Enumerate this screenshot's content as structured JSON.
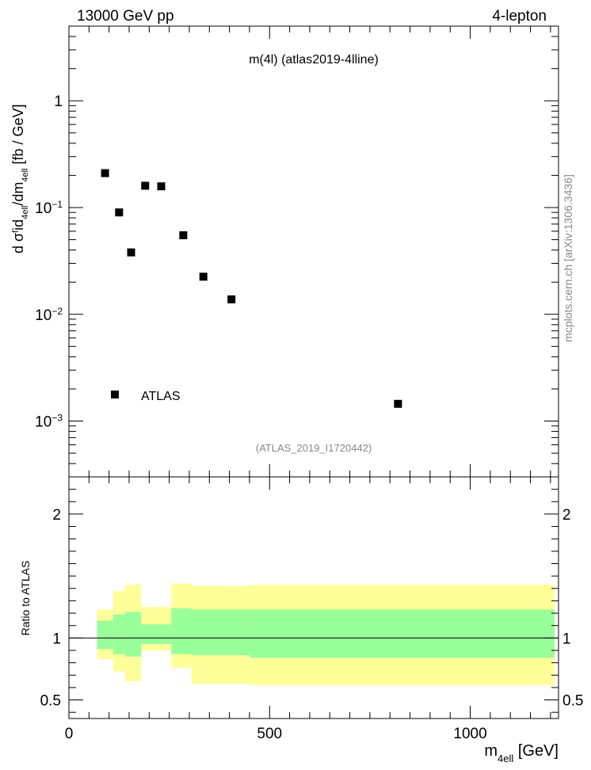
{
  "header": {
    "left": "13000 GeV pp",
    "right": "4-lepton"
  },
  "plot_title": "m(4l) (atlas2019-4lline)",
  "watermark": "(ATLAS_2019_I1720442)",
  "side_label": "mcplots.cern.ch [arXiv:1306.3436]",
  "legend": {
    "label": "ATLAS"
  },
  "colors": {
    "band_outer": "#ffff99",
    "band_inner": "#99ff99",
    "marker": "#000000"
  },
  "chart_data": [
    {
      "type": "scatter",
      "panel": "main",
      "ylog": true,
      "xlim": [
        0,
        1220
      ],
      "ylim": [
        0.0003,
        5
      ],
      "ylabel": "d σ^f id_4ell/dm_4ell [fb / GeV]",
      "yticks": [
        {
          "value": 1,
          "base": "1",
          "exp": ""
        },
        {
          "value": 0.1,
          "base": "10",
          "exp": "−1"
        },
        {
          "value": 0.01,
          "base": "10",
          "exp": "−2"
        },
        {
          "value": 0.001,
          "base": "10",
          "exp": "−3"
        }
      ],
      "series": [
        {
          "name": "ATLAS",
          "x": [
            90,
            125,
            155,
            190,
            230,
            285,
            335,
            405,
            820
          ],
          "y": [
            0.21,
            0.09,
            0.038,
            0.16,
            0.158,
            0.055,
            0.0225,
            0.0138,
            0.00145
          ]
        }
      ]
    },
    {
      "type": "area",
      "panel": "ratio",
      "xlim": [
        0,
        1220
      ],
      "ylim": [
        0.35,
        2.3
      ],
      "xlabel": "m_4ell [GeV]",
      "ylabel": "Ratio to ATLAS",
      "xticks": [
        0,
        500,
        1000
      ],
      "yticks": [
        0.5,
        1,
        2
      ],
      "reference": 1,
      "bands": {
        "edges": [
          70,
          110,
          140,
          180,
          200,
          255,
          305,
          450,
          1210
        ],
        "outer_lo": [
          0.83,
          0.73,
          0.65,
          0.9,
          0.9,
          0.76,
          0.63,
          0.62
        ],
        "outer_hi": [
          1.23,
          1.38,
          1.43,
          1.25,
          1.25,
          1.44,
          1.42,
          1.43
        ],
        "inner_lo": [
          0.91,
          0.87,
          0.85,
          0.95,
          0.95,
          0.87,
          0.86,
          0.84
        ],
        "inner_hi": [
          1.14,
          1.19,
          1.21,
          1.11,
          1.11,
          1.24,
          1.23,
          1.23
        ]
      }
    }
  ]
}
